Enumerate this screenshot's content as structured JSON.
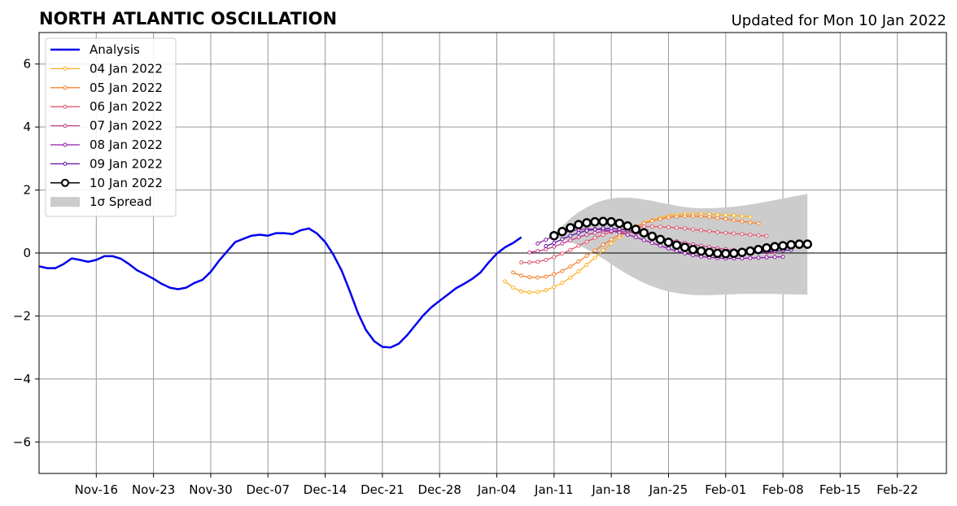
{
  "chart_data": {
    "type": "line",
    "title": "NORTH ATLANTIC OSCILLATION",
    "subtitle": "Updated for Mon 10 Jan 2022",
    "xlabel": "",
    "ylabel": "",
    "xlim": [
      "2021-11-09",
      "2022-02-28"
    ],
    "ylim": [
      -7,
      7
    ],
    "x_tick_dates": [
      "2021-11-16",
      "2021-11-23",
      "2021-11-30",
      "2021-12-07",
      "2021-12-14",
      "2021-12-21",
      "2021-12-28",
      "2022-01-04",
      "2022-01-11",
      "2022-01-18",
      "2022-01-25",
      "2022-02-01",
      "2022-02-08",
      "2022-02-15",
      "2022-02-22"
    ],
    "x_tick_labels": [
      "Nov-16",
      "Nov-23",
      "Nov-30",
      "Dec-07",
      "Dec-14",
      "Dec-21",
      "Dec-28",
      "Jan-04",
      "Jan-11",
      "Jan-18",
      "Jan-25",
      "Feb-01",
      "Feb-08",
      "Feb-15",
      "Feb-22"
    ],
    "y_ticks": [
      -6,
      -4,
      -2,
      0,
      2,
      4,
      6
    ],
    "y_tick_labels": [
      "−6",
      "−4",
      "−2",
      "0",
      "2",
      "4",
      "6"
    ],
    "grid": true,
    "zero_line": 0,
    "legend_position": "top-left",
    "analysis": {
      "name": "Analysis",
      "color": "#0000ee",
      "start_date": "2021-11-09",
      "values": [
        -0.42,
        -0.48,
        -0.48,
        -0.35,
        -0.17,
        -0.22,
        -0.28,
        -0.22,
        -0.1,
        -0.1,
        -0.18,
        -0.35,
        -0.55,
        -0.68,
        -0.82,
        -0.98,
        -1.1,
        -1.15,
        -1.1,
        -0.95,
        -0.85,
        -0.6,
        -0.25,
        0.05,
        0.35,
        0.45,
        0.55,
        0.58,
        0.55,
        0.63,
        0.63,
        0.6,
        0.72,
        0.78,
        0.62,
        0.35,
        -0.05,
        -0.55,
        -1.2,
        -1.9,
        -2.45,
        -2.8,
        -2.98,
        -3.0,
        -2.88,
        -2.62,
        -2.3,
        -1.98,
        -1.72,
        -1.52,
        -1.32,
        -1.12,
        -0.98,
        -0.82,
        -0.62,
        -0.3,
        -0.02,
        0.18,
        0.32,
        0.5
      ]
    },
    "forecasts": [
      {
        "name": "04 Jan 2022",
        "color": "#fcb024",
        "start_date": "2022-01-05",
        "values": [
          -0.9,
          -1.1,
          -1.22,
          -1.25,
          -1.24,
          -1.18,
          -1.08,
          -0.95,
          -0.78,
          -0.58,
          -0.37,
          -0.15,
          0.08,
          0.3,
          0.5,
          0.68,
          0.84,
          0.96,
          1.05,
          1.12,
          1.18,
          1.22,
          1.24,
          1.24,
          1.24,
          1.23,
          1.21,
          1.2,
          1.19,
          1.17,
          1.14
        ]
      },
      {
        "name": "05 Jan 2022",
        "color": "#f4812c",
        "start_date": "2022-01-06",
        "values": [
          -0.62,
          -0.72,
          -0.77,
          -0.78,
          -0.75,
          -0.68,
          -0.57,
          -0.43,
          -0.27,
          -0.09,
          0.08,
          0.26,
          0.43,
          0.58,
          0.72,
          0.84,
          0.94,
          1.02,
          1.08,
          1.13,
          1.16,
          1.17,
          1.17,
          1.16,
          1.14,
          1.11,
          1.08,
          1.04,
          1.0,
          0.97,
          0.94
        ]
      },
      {
        "name": "06 Jan 2022",
        "color": "#df5a6e",
        "start_date": "2022-01-07",
        "values": [
          -0.3,
          -0.3,
          -0.28,
          -0.22,
          -0.13,
          -0.02,
          0.1,
          0.23,
          0.36,
          0.48,
          0.58,
          0.67,
          0.74,
          0.79,
          0.82,
          0.84,
          0.84,
          0.83,
          0.82,
          0.8,
          0.78,
          0.75,
          0.72,
          0.69,
          0.66,
          0.64,
          0.62,
          0.6,
          0.58,
          0.56,
          0.54
        ]
      },
      {
        "name": "07 Jan 2022",
        "color": "#c43a88",
        "start_date": "2022-01-08",
        "values": [
          0.02,
          0.06,
          0.12,
          0.2,
          0.3,
          0.4,
          0.5,
          0.58,
          0.64,
          0.68,
          0.7,
          0.69,
          0.66,
          0.62,
          0.57,
          0.52,
          0.47,
          0.42,
          0.37,
          0.32,
          0.27,
          0.23,
          0.19,
          0.15,
          0.12,
          0.09,
          0.07,
          0.05,
          0.03,
          0.02,
          0.02
        ]
      },
      {
        "name": "08 Jan 2022",
        "color": "#8f1aa6",
        "start_date": "2022-01-09",
        "values": [
          0.3,
          0.42,
          0.54,
          0.63,
          0.7,
          0.74,
          0.76,
          0.76,
          0.74,
          0.7,
          0.65,
          0.58,
          0.5,
          0.41,
          0.32,
          0.23,
          0.14,
          0.06,
          -0.01,
          -0.07,
          -0.11,
          -0.14,
          -0.16,
          -0.17,
          -0.17,
          -0.17,
          -0.16,
          -0.15,
          -0.14,
          -0.13,
          -0.12
        ]
      },
      {
        "name": "09 Jan 2022",
        "color": "#5b0f9a",
        "start_date": "2022-01-10",
        "values": [
          0.22,
          0.32,
          0.44,
          0.55,
          0.64,
          0.71,
          0.75,
          0.78,
          0.78,
          0.76,
          0.72,
          0.66,
          0.59,
          0.51,
          0.43,
          0.35,
          0.27,
          0.2,
          0.14,
          0.09,
          0.05,
          0.02,
          0.0,
          -0.01,
          -0.01,
          0.0,
          0.02,
          0.04,
          0.06,
          0.08,
          0.1
        ]
      }
    ],
    "current_forecast": {
      "name": "10 Jan 2022",
      "color": "#000000",
      "start_date": "2022-01-11",
      "values": [
        0.55,
        0.68,
        0.8,
        0.9,
        0.96,
        0.99,
        1.0,
        0.99,
        0.94,
        0.86,
        0.75,
        0.64,
        0.53,
        0.43,
        0.34,
        0.25,
        0.18,
        0.11,
        0.06,
        0.02,
        -0.01,
        -0.02,
        -0.01,
        0.02,
        0.06,
        0.11,
        0.16,
        0.2,
        0.23,
        0.26,
        0.28,
        0.28
      ]
    },
    "spread": {
      "name": "1σ Spread",
      "color": "#cccccc",
      "start_date": "2022-01-11",
      "upper": [
        0.6,
        0.85,
        1.1,
        1.3,
        1.45,
        1.58,
        1.67,
        1.73,
        1.76,
        1.76,
        1.74,
        1.7,
        1.66,
        1.6,
        1.55,
        1.5,
        1.46,
        1.43,
        1.42,
        1.42,
        1.43,
        1.45,
        1.47,
        1.5,
        1.54,
        1.58,
        1.63,
        1.68,
        1.73,
        1.78,
        1.83,
        1.88
      ],
      "lower": [
        0.5,
        0.45,
        0.35,
        0.25,
        0.12,
        -0.02,
        -0.18,
        -0.35,
        -0.52,
        -0.68,
        -0.82,
        -0.95,
        -1.06,
        -1.15,
        -1.22,
        -1.27,
        -1.31,
        -1.33,
        -1.34,
        -1.34,
        -1.33,
        -1.32,
        -1.31,
        -1.3,
        -1.3,
        -1.3,
        -1.3,
        -1.3,
        -1.31,
        -1.31,
        -1.32,
        -1.32
      ]
    },
    "legend": [
      "Analysis",
      "04 Jan 2022",
      "05 Jan 2022",
      "06 Jan 2022",
      "07 Jan 2022",
      "08 Jan 2022",
      "09 Jan 2022",
      "10 Jan 2022",
      "1σ Spread"
    ]
  }
}
